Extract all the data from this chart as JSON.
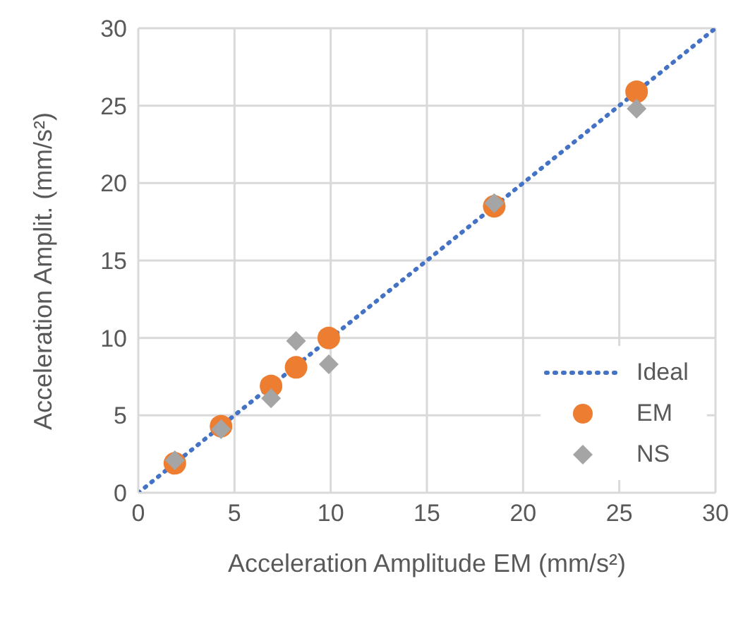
{
  "chart_data": {
    "type": "scatter",
    "xlabel": "Acceleration Amplitude EM (mm/s²)",
    "ylabel": "Acceleration Amplit. (mm/s²)",
    "xlim": [
      0,
      30
    ],
    "ylim": [
      0,
      30
    ],
    "xticks": [
      0,
      5,
      10,
      15,
      20,
      25,
      30
    ],
    "yticks": [
      0,
      5,
      10,
      15,
      20,
      25,
      30
    ],
    "grid": true,
    "legend": "bottom right",
    "series": [
      {
        "name": "Ideal",
        "type": "line",
        "color": "#4472c4",
        "line_style": "dotted",
        "marker": "none",
        "x": [
          0,
          30
        ],
        "values": [
          0,
          30
        ]
      },
      {
        "name": "EM",
        "color": "#ed7d31",
        "marker": "circle",
        "x": [
          1.9,
          4.3,
          6.9,
          8.2,
          9.9,
          18.5,
          25.9
        ],
        "values": [
          1.9,
          4.3,
          6.9,
          8.1,
          10.0,
          18.5,
          25.9
        ]
      },
      {
        "name": "NS",
        "color": "#a5a5a5",
        "marker": "diamond",
        "x": [
          1.9,
          4.3,
          6.9,
          8.2,
          9.9,
          18.5,
          25.9
        ],
        "values": [
          2.1,
          4.1,
          6.1,
          9.8,
          8.3,
          18.7,
          24.8
        ]
      }
    ]
  }
}
